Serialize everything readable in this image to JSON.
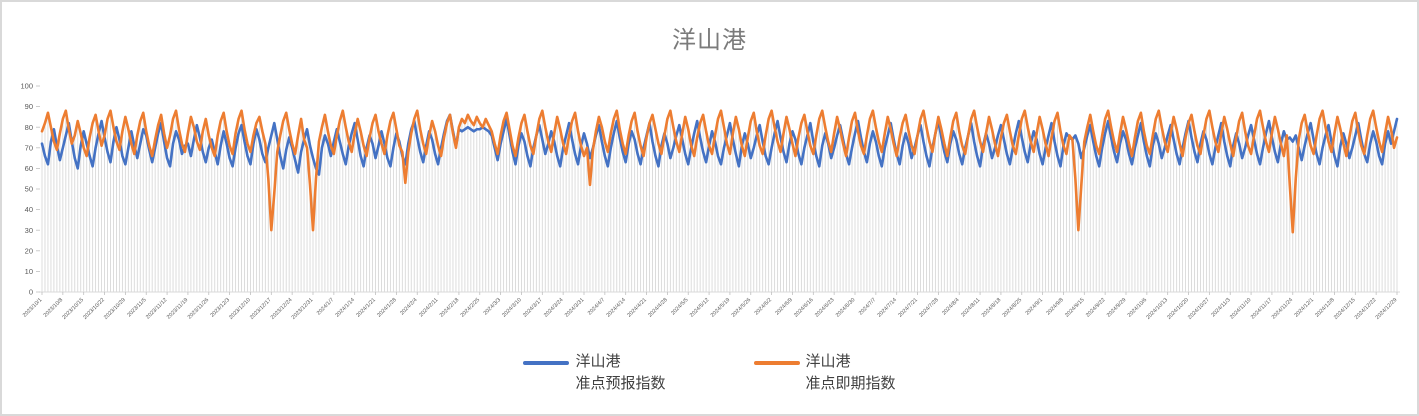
{
  "chart_title": "洋山港",
  "style": {
    "accent_blue": "#4472C4",
    "accent_orange": "#ED7D31",
    "drop_line_color": "#D9D9D9",
    "tick_color": "#BFBFBF",
    "axis_text_color": "#595959",
    "title_color": "#7B7B7B",
    "border_color": "#D9D9D9"
  },
  "chart_data": {
    "type": "line",
    "title": "洋山港",
    "xlabel": "",
    "ylabel": "",
    "ylim": [
      0,
      100
    ],
    "y_ticks": [
      0,
      10,
      20,
      30,
      40,
      50,
      60,
      70,
      80,
      90,
      100
    ],
    "grid": "vertical drop lines at every daily point, no horizontal gridlines",
    "legend_position": "bottom",
    "x_start": "2023/10/1",
    "x_end": "2024/12/29",
    "x_frequency": "daily",
    "x_tick_label_interval_days": 7,
    "x_tick_labels": [
      "2023/10/1",
      "2023/10/8",
      "2023/10/15",
      "2023/10/22",
      "2023/10/29",
      "2023/11/5",
      "2023/11/12",
      "2023/11/19",
      "2023/11/26",
      "2023/12/3",
      "2023/12/10",
      "2023/12/17",
      "2023/12/24",
      "2023/12/31",
      "2024/1/7",
      "2024/1/14",
      "2024/1/21",
      "2024/1/28",
      "2024/2/4",
      "2024/2/11",
      "2024/2/18",
      "2024/2/25",
      "2024/3/3",
      "2024/3/10",
      "2024/3/17",
      "2024/3/24",
      "2024/3/31",
      "2024/4/7",
      "2024/4/14",
      "2024/4/21",
      "2024/4/28",
      "2024/5/5",
      "2024/5/12",
      "2024/5/19",
      "2024/5/26",
      "2024/6/2",
      "2024/6/9",
      "2024/6/16",
      "2024/6/23",
      "2024/6/30",
      "2024/7/7",
      "2024/7/14",
      "2024/7/21",
      "2024/7/28",
      "2024/8/4",
      "2024/8/11",
      "2024/8/18",
      "2024/8/25",
      "2024/9/1",
      "2024/9/8",
      "2024/9/15",
      "2024/9/22",
      "2024/9/29",
      "2024/10/6",
      "2024/10/13",
      "2024/10/20",
      "2024/10/27",
      "2024/11/3",
      "2024/11/10",
      "2024/11/17",
      "2024/11/24",
      "2024/12/1",
      "2024/12/8",
      "2024/12/15",
      "2024/12/22",
      "2024/12/29"
    ],
    "series": [
      {
        "name": "洋山港 准点预报指数",
        "color": "#4472C4",
        "values_rows": [
          [
            72,
            66,
            62,
            73,
            79,
            71,
            64,
            70,
            76,
            82,
            73,
            65,
            60,
            71,
            78,
            72,
            66,
            61,
            70,
            77,
            83,
            75,
            68,
            63,
            73,
            80,
            74,
            66,
            62,
            70,
            78,
            71,
            65,
            72,
            79,
            76,
            69,
            63,
            70,
            77,
            82,
            73,
            65,
            61,
            72,
            78,
            74,
            67,
            71,
            72,
            66,
            74,
            81,
            75,
            68,
            63,
            70
          ],
          [
            74,
            68,
            62,
            71,
            78,
            72,
            65,
            61,
            70,
            77,
            81,
            73,
            66,
            62,
            72,
            79,
            74,
            67,
            63,
            70,
            76,
            82,
            74,
            66,
            60,
            69,
            75,
            70,
            64,
            58,
            68,
            74,
            79,
            71,
            65,
            60,
            57,
            70,
            76,
            72,
            66,
            73,
            79,
            73,
            67,
            62,
            71,
            77,
            82,
            74,
            66,
            61,
            70,
            76,
            72,
            65,
            71
          ],
          [
            78,
            72,
            65,
            61,
            70,
            77,
            73,
            66,
            62,
            72,
            79,
            83,
            75,
            68,
            63,
            71,
            78,
            74,
            67,
            62,
            70,
            77,
            83,
            86,
            78,
            71,
            79,
            78,
            79,
            80,
            79,
            78,
            79,
            79,
            80,
            79,
            78,
            76,
            70,
            64,
            72,
            78,
            84,
            76,
            68,
            62,
            71,
            77,
            73,
            66,
            61,
            70,
            76,
            81,
            74,
            67,
            72
          ],
          [
            78,
            73,
            66,
            61,
            70,
            76,
            82,
            74,
            67,
            62,
            71,
            77,
            72,
            65,
            70,
            76,
            81,
            73,
            66,
            61,
            70,
            77,
            83,
            75,
            68,
            63,
            72,
            78,
            74,
            67,
            62,
            70,
            76,
            82,
            73,
            66,
            61,
            71,
            77,
            72,
            65,
            70,
            76,
            81,
            74,
            67,
            62,
            70,
            77,
            83,
            75,
            68,
            63,
            71,
            78,
            73,
            66
          ],
          [
            62,
            70,
            76,
            82,
            74,
            67,
            61,
            71,
            77,
            72,
            65,
            70,
            76,
            81,
            73,
            66,
            62,
            70,
            77,
            83,
            75,
            68,
            63,
            72,
            78,
            74,
            67,
            62,
            70,
            76,
            82,
            73,
            66,
            61,
            71,
            77,
            72,
            65,
            70,
            76,
            81,
            74,
            67,
            62,
            70,
            77,
            83,
            75,
            68,
            63,
            72,
            78,
            73,
            66,
            61,
            70,
            76
          ],
          [
            82,
            74,
            67,
            62,
            71,
            77,
            72,
            65,
            70,
            76,
            81,
            73,
            66,
            61,
            70,
            77,
            83,
            75,
            68,
            63,
            72,
            78,
            74,
            67,
            62,
            70,
            76,
            82,
            73,
            66,
            61,
            71,
            77,
            72,
            65,
            70,
            76,
            81,
            74,
            67,
            62,
            70,
            77,
            83,
            75,
            68,
            63,
            72,
            78,
            74,
            67,
            62,
            70,
            76,
            82,
            73,
            66
          ],
          [
            61,
            71,
            77,
            75,
            74,
            76,
            72,
            65,
            70,
            76,
            81,
            73,
            66,
            61,
            70,
            77,
            83,
            75,
            68,
            63,
            72,
            78,
            74,
            67,
            62,
            70,
            76,
            82,
            73,
            66,
            61,
            71,
            77,
            72,
            65,
            70,
            76,
            81,
            74,
            67,
            62,
            70,
            77,
            83,
            75,
            68,
            63,
            72,
            78,
            74,
            67,
            62,
            70,
            76,
            82,
            73,
            66
          ],
          [
            61,
            71,
            77,
            72,
            65,
            70,
            76,
            81,
            74,
            67,
            62,
            70,
            77,
            83,
            75,
            68,
            63,
            72,
            78,
            74,
            75,
            73,
            76,
            70,
            64,
            71,
            77,
            82,
            74,
            67,
            62,
            70,
            76,
            81,
            73,
            66,
            61,
            71,
            77,
            72,
            65,
            70,
            76,
            82,
            74,
            67,
            63,
            72,
            78,
            73,
            66,
            62,
            72,
            78,
            72,
            78,
            84
          ]
        ]
      },
      {
        "name": "洋山港 准点即期指数",
        "color": "#ED7D31",
        "values_rows": [
          [
            78,
            82,
            87,
            80,
            73,
            69,
            77,
            84,
            88,
            79,
            72,
            76,
            83,
            77,
            70,
            66,
            75,
            82,
            86,
            78,
            71,
            76,
            84,
            88,
            80,
            73,
            69,
            78,
            85,
            79,
            72,
            67,
            76,
            83,
            87,
            78,
            71,
            66,
            74,
            81,
            86,
            77,
            70,
            76,
            84,
            88,
            79,
            72,
            68,
            77,
            85,
            80,
            73,
            69,
            78,
            84,
            76
          ],
          [
            70,
            66,
            76,
            83,
            87,
            78,
            71,
            67,
            77,
            84,
            88,
            79,
            72,
            68,
            76,
            82,
            85,
            78,
            72,
            55,
            30,
            48,
            68,
            76,
            83,
            87,
            79,
            72,
            67,
            76,
            84,
            74,
            70,
            52,
            30,
            55,
            73,
            80,
            86,
            78,
            71,
            67,
            76,
            83,
            88,
            80,
            73,
            68,
            77,
            84,
            78,
            71,
            66,
            75,
            82,
            86,
            78
          ],
          [
            72,
            67,
            76,
            83,
            87,
            79,
            71,
            68,
            53,
            68,
            77,
            84,
            88,
            79,
            72,
            67,
            76,
            83,
            78,
            71,
            66,
            75,
            82,
            86,
            77,
            70,
            80,
            84,
            82,
            86,
            83,
            81,
            85,
            82,
            80,
            84,
            81,
            78,
            72,
            67,
            76,
            83,
            87,
            79,
            71,
            66,
            75,
            82,
            86,
            78,
            71,
            67,
            76,
            84,
            88,
            80,
            73
          ],
          [
            68,
            77,
            85,
            79,
            72,
            67,
            76,
            83,
            87,
            78,
            71,
            66,
            70,
            52,
            69,
            78,
            85,
            80,
            73,
            68,
            77,
            84,
            88,
            79,
            72,
            67,
            76,
            83,
            87,
            78,
            71,
            66,
            75,
            82,
            86,
            79,
            72,
            67,
            76,
            84,
            88,
            80,
            73,
            68,
            77,
            85,
            79,
            71,
            66,
            75,
            82,
            86,
            78,
            71,
            67,
            76,
            84
          ],
          [
            88,
            80,
            72,
            67,
            77,
            85,
            79,
            71,
            66,
            75,
            83,
            87,
            78,
            71,
            67,
            76,
            84,
            88,
            80,
            73,
            68,
            77,
            85,
            79,
            72,
            66,
            75,
            82,
            86,
            78,
            71,
            67,
            76,
            84,
            88,
            80,
            73,
            68,
            77,
            85,
            79,
            72,
            66,
            75,
            83,
            87,
            78,
            71,
            67,
            76,
            84,
            88,
            80,
            73,
            68,
            77,
            85
          ],
          [
            79,
            72,
            66,
            75,
            82,
            86,
            78,
            71,
            67,
            76,
            84,
            88,
            80,
            73,
            68,
            77,
            85,
            79,
            72,
            66,
            75,
            83,
            87,
            78,
            71,
            67,
            76,
            84,
            88,
            80,
            73,
            68,
            77,
            85,
            79,
            72,
            66,
            75,
            82,
            86,
            78,
            71,
            67,
            76,
            84,
            88,
            80,
            73,
            68,
            77,
            85,
            79,
            72,
            66,
            75,
            83,
            87
          ],
          [
            78,
            71,
            67,
            76,
            74,
            55,
            30,
            52,
            73,
            80,
            86,
            78,
            71,
            67,
            76,
            84,
            88,
            80,
            73,
            68,
            77,
            85,
            79,
            72,
            66,
            75,
            83,
            87,
            78,
            71,
            67,
            76,
            84,
            88,
            80,
            73,
            68,
            77,
            85,
            79,
            72,
            66,
            75,
            82,
            86,
            78,
            71,
            67,
            76,
            84,
            88,
            80,
            73,
            68,
            77,
            85,
            79
          ],
          [
            72,
            66,
            75,
            83,
            87,
            78,
            71,
            67,
            76,
            84,
            88,
            80,
            73,
            68,
            77,
            85,
            79,
            72,
            66,
            76,
            52,
            29,
            55,
            74,
            82,
            86,
            78,
            71,
            67,
            76,
            84,
            88,
            80,
            73,
            68,
            77,
            85,
            79,
            72,
            66,
            75,
            83,
            87,
            78,
            71,
            67,
            76,
            84,
            88,
            80,
            73,
            68,
            77,
            85,
            79,
            70,
            75
          ]
        ]
      }
    ],
    "legend": {
      "entries": [
        {
          "line1": "洋山港",
          "line2": "准点预报指数",
          "color": "#4472C4"
        },
        {
          "line1": "洋山港",
          "line2": "准点即期指数",
          "color": "#ED7D31"
        }
      ]
    }
  }
}
